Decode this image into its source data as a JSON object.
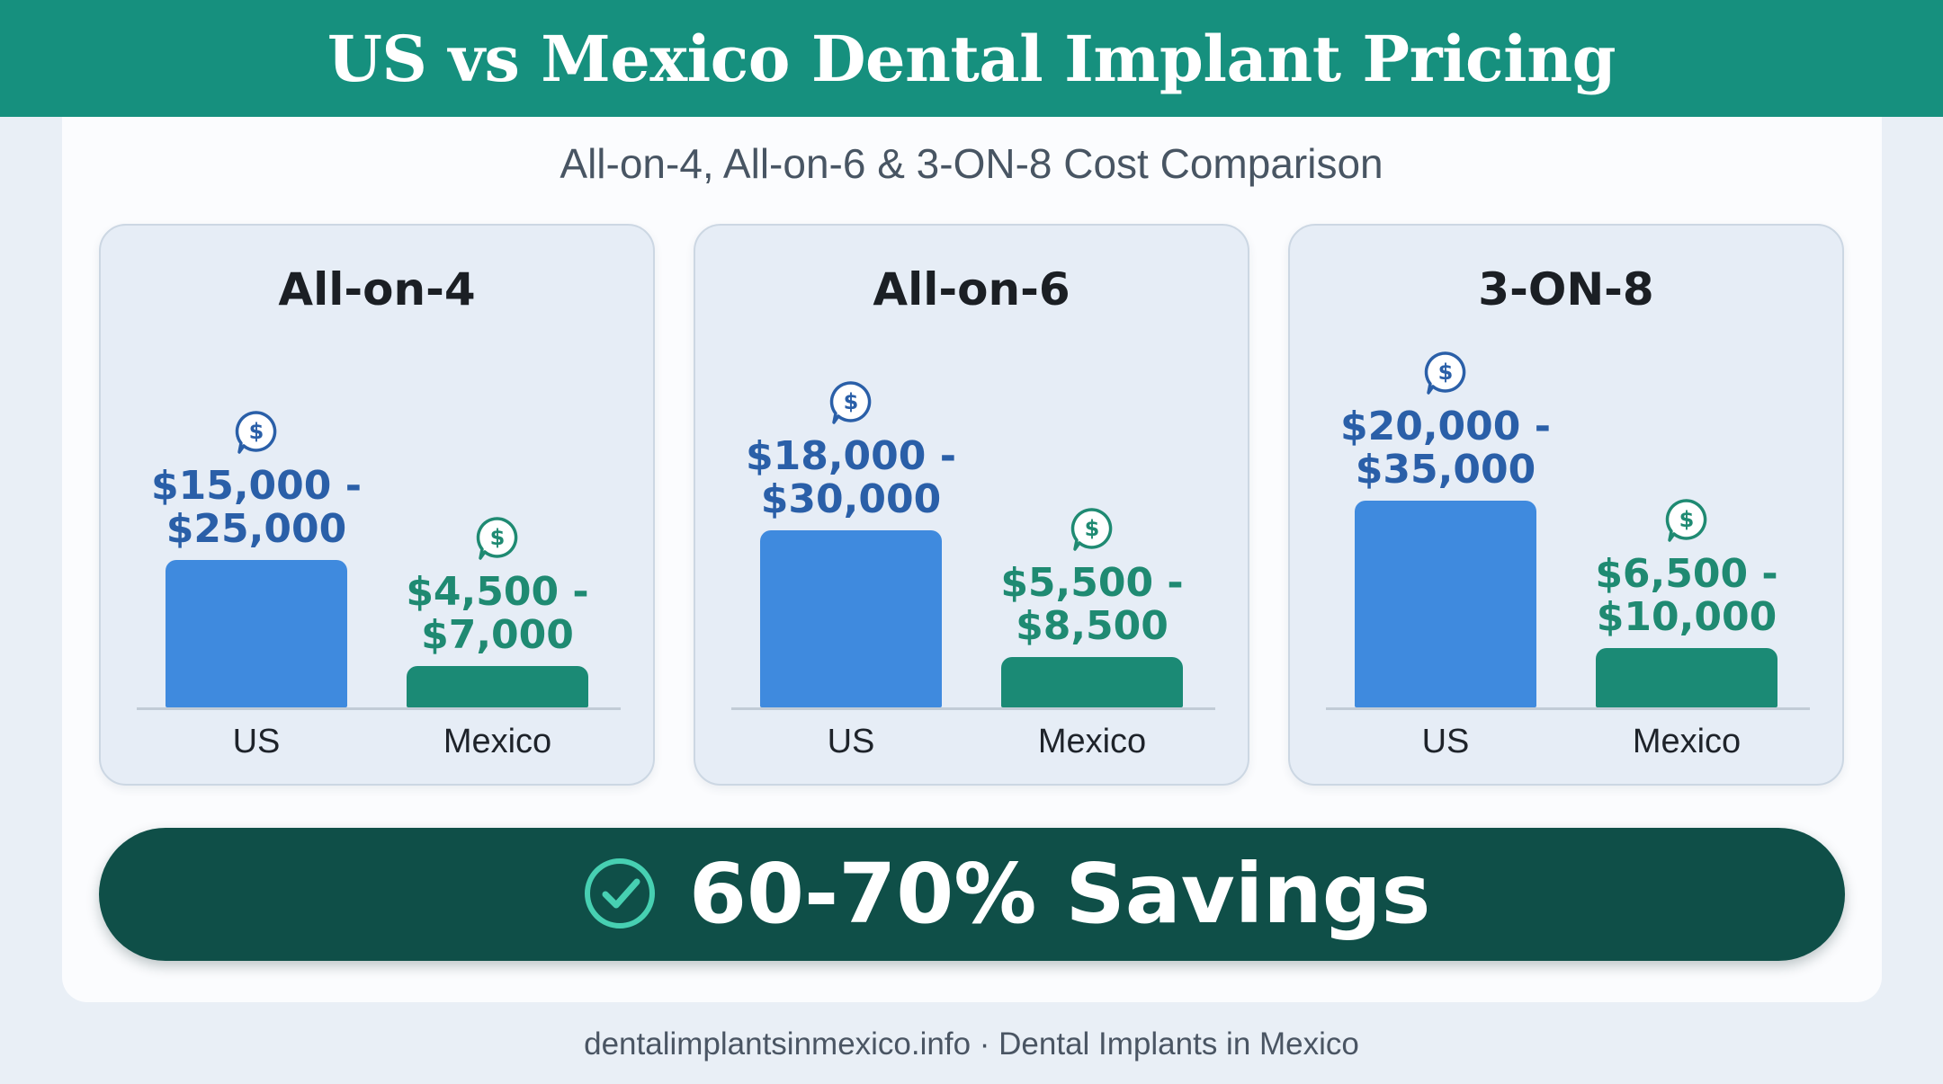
{
  "header": {
    "title": "US vs Mexico Dental Implant Pricing"
  },
  "subtitle": "All-on-4, All-on-6 & 3-ON-8 Cost Comparison",
  "colors": {
    "header": "#16907e",
    "us_bar": "#3f8ade",
    "mexico_bar": "#1b8a75",
    "us_text": "#2a5fa8",
    "mexico_text": "#1f8a72",
    "banner": "#0f4f48",
    "check": "#47d0b2"
  },
  "icons": {
    "price": "dollar-speech-bubble-icon",
    "savings": "check-circle-icon"
  },
  "chart_data": [
    {
      "type": "bar",
      "title": "All-on-4",
      "categories": [
        "US",
        "Mexico"
      ],
      "price_labels": [
        "$15,000 - $25,000",
        "$4,500 - $7,000"
      ],
      "ranges": [
        [
          15000,
          25000
        ],
        [
          4500,
          7000
        ]
      ],
      "ylim": [
        0,
        35000
      ]
    },
    {
      "type": "bar",
      "title": "All-on-6",
      "categories": [
        "US",
        "Mexico"
      ],
      "price_labels": [
        "$18,000 - $30,000",
        "$5,500 - $8,500"
      ],
      "ranges": [
        [
          18000,
          30000
        ],
        [
          5500,
          8500
        ]
      ],
      "ylim": [
        0,
        35000
      ]
    },
    {
      "type": "bar",
      "title": "3-ON-8",
      "categories": [
        "US",
        "Mexico"
      ],
      "price_labels": [
        "$20,000 - $35,000",
        "$6,500 - $10,000"
      ],
      "ranges": [
        [
          20000,
          35000
        ],
        [
          6500,
          10000
        ]
      ],
      "ylim": [
        0,
        35000
      ]
    }
  ],
  "banner": {
    "text": "60-70% Savings"
  },
  "footer": "dentalimplantsinmexico.info · Dental Implants in Mexico"
}
